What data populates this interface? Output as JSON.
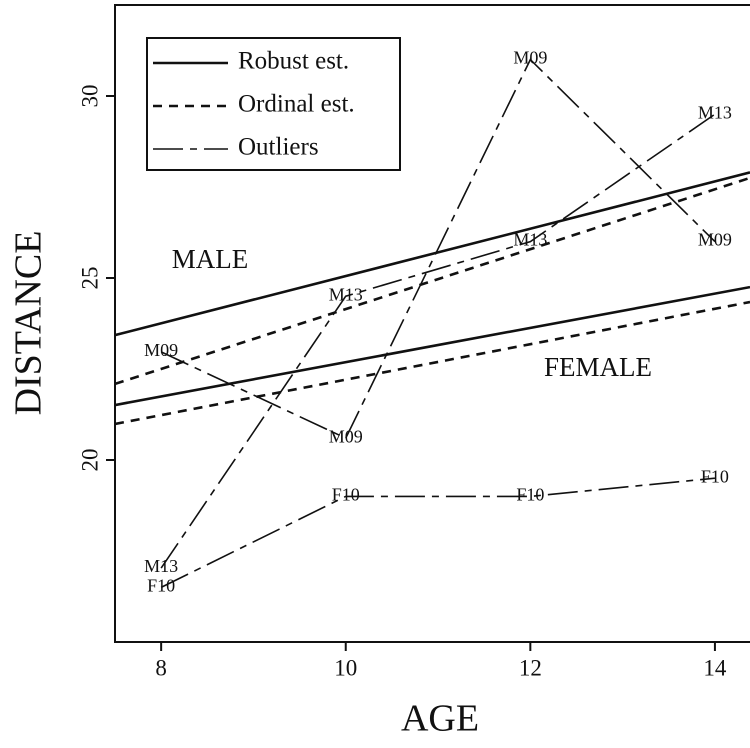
{
  "chart_data": {
    "type": "line",
    "xlabel": "AGE",
    "ylabel": "DISTANCE",
    "xlim": [
      7.5,
      14.38
    ],
    "ylim": [
      15,
      32.5
    ],
    "xticks": [
      8,
      10,
      12,
      14
    ],
    "yticks": [
      20,
      25,
      30
    ],
    "color": "#111111",
    "annotations": [
      "MALE",
      "FEMALE"
    ],
    "series": [
      {
        "name": "Robust est.",
        "dash": "solid",
        "lines": [
          {
            "x": [
              7.5,
              14.38
            ],
            "values": [
              23.43,
              27.9
            ]
          },
          {
            "x": [
              7.5,
              14.38
            ],
            "values": [
              21.51,
              24.75
            ]
          }
        ]
      },
      {
        "name": "Ordinal est.",
        "dash": "short",
        "lines": [
          {
            "x": [
              7.5,
              14.38
            ],
            "values": [
              22.09,
              27.75
            ]
          },
          {
            "x": [
              7.5,
              14.38
            ],
            "values": [
              20.99,
              24.34
            ]
          }
        ]
      },
      {
        "name": "Outliers",
        "dash": "long",
        "lines": [
          {
            "label": "M09",
            "x": [
              8,
              10,
              12,
              14
            ],
            "values": [
              22.97,
              20.6,
              31.0,
              26.0
            ]
          },
          {
            "label": "M13",
            "x": [
              8,
              10,
              12,
              14
            ],
            "values": [
              17.03,
              24.5,
              26.0,
              29.5
            ]
          },
          {
            "label": "F10",
            "x": [
              8,
              10,
              12,
              14
            ],
            "values": [
              16.5,
              19.0,
              19.0,
              19.5
            ]
          }
        ]
      }
    ]
  }
}
